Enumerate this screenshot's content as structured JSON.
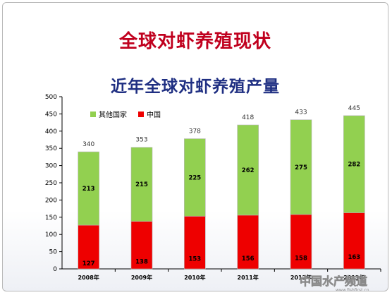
{
  "slide": {
    "title": "全球对虾养殖现状"
  },
  "watermark": {
    "text": "中国水产频道",
    "subtext": "www.fishfirst.cn"
  },
  "colors": {
    "others": "#92d050",
    "china": "#ee0000",
    "title": "#c0001e",
    "chart_title": "#1f2f82"
  },
  "chart_data": {
    "type": "bar",
    "stacked": true,
    "title": "近年全球对虾养殖产量",
    "categories": [
      "2008年",
      "2009年",
      "2010年",
      "2011年",
      "2012年",
      "2013年"
    ],
    "series": [
      {
        "name": "中国",
        "values": [
          127,
          138,
          153,
          156,
          158,
          163
        ],
        "color": "#ee0000"
      },
      {
        "name": "其他国家",
        "values": [
          213,
          215,
          225,
          262,
          275,
          282
        ],
        "color": "#92d050"
      }
    ],
    "totals": [
      340,
      353,
      378,
      418,
      433,
      445
    ],
    "segment_labels": [
      [
        "127",
        "138",
        "153",
        "156",
        "158",
        "163"
      ],
      [
        "213",
        "215",
        "225",
        "262",
        "275",
        "282"
      ]
    ],
    "legend_order": [
      "其他国家",
      "中国"
    ],
    "legend_position": "top-left",
    "ylim": [
      0,
      500
    ],
    "yticks": [
      0,
      50,
      100,
      150,
      200,
      250,
      300,
      350,
      400,
      450,
      500
    ],
    "grid": false
  }
}
